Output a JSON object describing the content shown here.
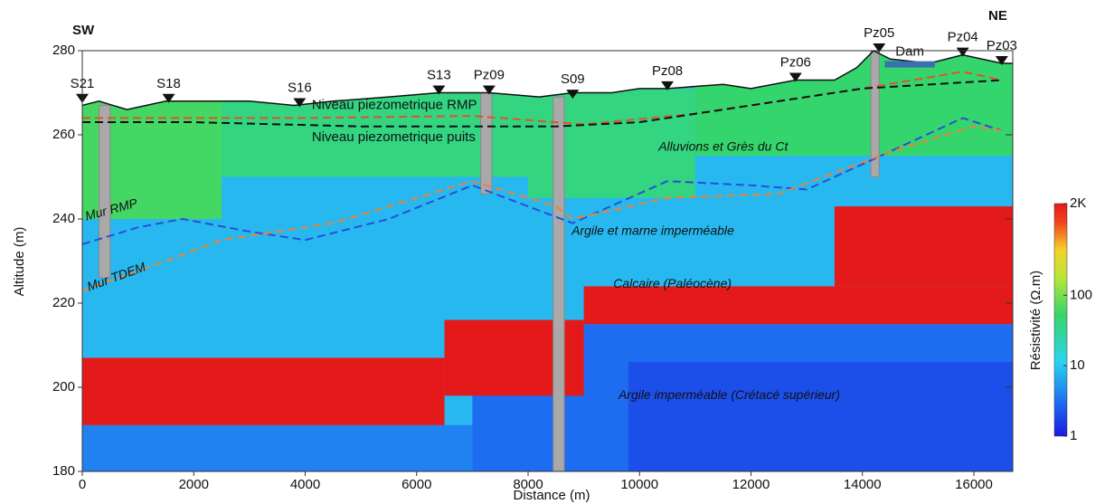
{
  "chart_data": {
    "type": "section",
    "xlabel": "Distance (m)",
    "ylabel": "Altitude (m)",
    "left_label": "SW",
    "right_label": "NE",
    "xlim": [
      0,
      16700
    ],
    "ylim": [
      180,
      280
    ],
    "xticks": [
      0,
      2000,
      4000,
      6000,
      8000,
      10000,
      12000,
      14000,
      16000
    ],
    "yticks": [
      180,
      200,
      220,
      240,
      260,
      280
    ],
    "colorbar": {
      "label": "Résistivité (Ω.m)",
      "lim": [
        1,
        2000
      ],
      "log": true,
      "ticks": [
        1,
        10,
        100,
        {
          "value": 2000,
          "label": "2K"
        }
      ]
    },
    "topography": {
      "x": [
        0,
        300,
        800,
        1500,
        2500,
        3000,
        3800,
        4500,
        5500,
        6400,
        7300,
        8200,
        8800,
        9500,
        10000,
        10500,
        11500,
        12000,
        12800,
        13500,
        13900,
        14200,
        14500,
        15200,
        15800,
        16500,
        16700
      ],
      "z": [
        267,
        268,
        266,
        268,
        268,
        268,
        267,
        268,
        269,
        270,
        270,
        269,
        270,
        270,
        271,
        271,
        272,
        271,
        273,
        273,
        276,
        280,
        278,
        277,
        279,
        277,
        277
      ]
    },
    "regions": [
      {
        "x": [
          0,
          16700
        ],
        "z": [
          180,
          281
        ],
        "resistivity": 8
      },
      {
        "x": [
          0,
          2500
        ],
        "z": [
          240,
          268
        ],
        "resistivity": 60
      },
      {
        "x": [
          2500,
          8000
        ],
        "z": [
          250,
          270
        ],
        "resistivity": 40
      },
      {
        "x": [
          8000,
          11000
        ],
        "z": [
          245,
          271
        ],
        "resistivity": 40
      },
      {
        "x": [
          11000,
          16700
        ],
        "z": [
          255,
          281
        ],
        "resistivity": 50
      },
      {
        "x": [
          0,
          7000
        ],
        "z": [
          180,
          191
        ],
        "resistivity": 4
      },
      {
        "x": [
          7000,
          16700
        ],
        "z": [
          180,
          215
        ],
        "resistivity": 3
      },
      {
        "x": [
          9800,
          16700
        ],
        "z": [
          180,
          206
        ],
        "resistivity": 2
      },
      {
        "x": [
          0,
          6500
        ],
        "z": [
          191,
          207
        ],
        "resistivity": 2000
      },
      {
        "x": [
          6500,
          9000
        ],
        "z": [
          198,
          216
        ],
        "resistivity": 2000
      },
      {
        "x": [
          9000,
          16700
        ],
        "z": [
          215,
          224
        ],
        "resistivity": 2000
      },
      {
        "x": [
          13500,
          16700
        ],
        "z": [
          224,
          243
        ],
        "resistivity": 2000
      }
    ],
    "series": [
      {
        "name": "Niveau piezometrique RMP",
        "color": "#e0532b",
        "x": [
          0,
          4000,
          7000,
          9000,
          11000,
          14000,
          15800,
          16500
        ],
        "values": [
          264,
          264,
          264.5,
          262.5,
          265,
          271,
          275,
          273
        ]
      },
      {
        "name": "Niveau piezometrique puits",
        "color": "#111111",
        "x": [
          0,
          2000,
          5000,
          8500,
          10000,
          12000,
          14000,
          16500
        ],
        "values": [
          263,
          263,
          262,
          262,
          263,
          267,
          271,
          273
        ]
      },
      {
        "name": "Mur RMP",
        "color": "#2a4fd6",
        "x": [
          0,
          1000,
          1800,
          3000,
          4000,
          5500,
          7000,
          8000,
          8800,
          10500,
          12000,
          13000,
          14000,
          15800,
          16500
        ],
        "values": [
          234,
          238,
          240,
          237,
          235,
          240,
          248,
          243,
          239,
          249,
          248,
          247,
          253,
          264,
          261
        ]
      },
      {
        "name": "Mur TDEM",
        "color": "#e8843a",
        "x": [
          0,
          1500,
          2500,
          4500,
          7000,
          8500,
          8800,
          10500,
          12500,
          14500,
          16000,
          16500
        ],
        "values": [
          223,
          230,
          235,
          239,
          249,
          243,
          240,
          245,
          246,
          256,
          262,
          261
        ]
      }
    ],
    "wells": [
      {
        "name": "S21",
        "x": 0,
        "z": 268
      },
      {
        "name": "S18",
        "x": 1550,
        "z": 268
      },
      {
        "name": "S16",
        "x": 3900,
        "z": 267
      },
      {
        "name": "S13",
        "x": 6400,
        "z": 270
      },
      {
        "name": "Pz09",
        "x": 7300,
        "z": 270
      },
      {
        "name": "S09",
        "x": 8800,
        "z": 269
      },
      {
        "name": "Pz08",
        "x": 10500,
        "z": 271
      },
      {
        "name": "Pz06",
        "x": 12800,
        "z": 273
      },
      {
        "name": "Pz05",
        "x": 14300,
        "z": 280
      },
      {
        "name": "Pz04",
        "x": 15800,
        "z": 279
      },
      {
        "name": "Pz03",
        "x": 16500,
        "z": 277
      }
    ],
    "boreholes": [
      {
        "x": [
          300,
          500
        ],
        "z": [
          226,
          267
        ]
      },
      {
        "x": [
          7150,
          7350
        ],
        "z": [
          246,
          270
        ]
      },
      {
        "x": [
          8450,
          8650
        ],
        "z": [
          180,
          269
        ]
      },
      {
        "x": [
          14150,
          14300
        ],
        "z": [
          250,
          280
        ]
      }
    ],
    "dam": {
      "label": "Dam",
      "x": [
        14400,
        15300
      ],
      "z": [
        276,
        277.5
      ]
    },
    "annotations": [
      "Alluvions et Grès du Ct",
      "Argile et marne imperméable",
      "Calcaire (Paléocène)",
      "Argile imperméable (Crétacé supérieur)"
    ]
  }
}
